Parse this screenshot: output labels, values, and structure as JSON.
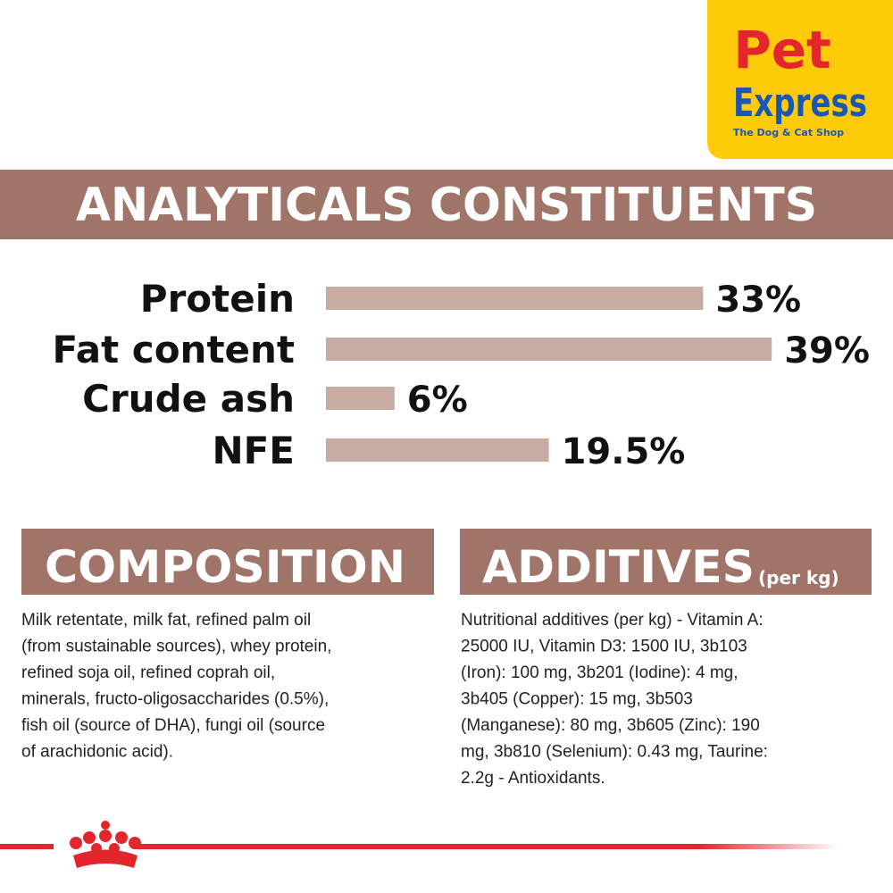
{
  "logo": {
    "line1": "Pet",
    "line2": "Express",
    "tagline": "The Dog & Cat Shop"
  },
  "analytics": {
    "title": "ANALYTICALS CONSTITUENTS",
    "categories": [
      "Protein",
      "Fat content",
      "Crude ash",
      "NFE"
    ],
    "values": [
      33,
      39,
      6,
      19.5
    ],
    "value_labels": [
      "33%",
      "39%",
      "6%",
      "19.5%"
    ],
    "color": "#c8aca4"
  },
  "composition": {
    "title": "COMPOSITION",
    "lines": [
      "Milk retentate, milk fat, refined palm oil",
      "(from sustainable sources), whey protein,",
      "refined soja oil, refined coprah oil,",
      "minerals, fructo-oligosaccharides (0.5%),",
      "fish oil (source of DHA), fungi oil (source",
      "of arachidonic acid)."
    ]
  },
  "additives": {
    "title": "ADDITIVES",
    "title_suffix": "(per kg)",
    "lines": [
      "Nutritional additives (per kg) - Vitamin A:",
      "25000 IU, Vitamin D3: 1500 IU, 3b103",
      "(Iron): 100 mg, 3b201 (Iodine): 4 mg,",
      "3b405 (Copper): 15 mg, 3b503",
      "(Manganese): 80 mg, 3b605 (Zinc): 190",
      "mg, 3b810 (Selenium): 0.43 mg, Taurine:",
      "2.2g - Antioxidants."
    ]
  }
}
